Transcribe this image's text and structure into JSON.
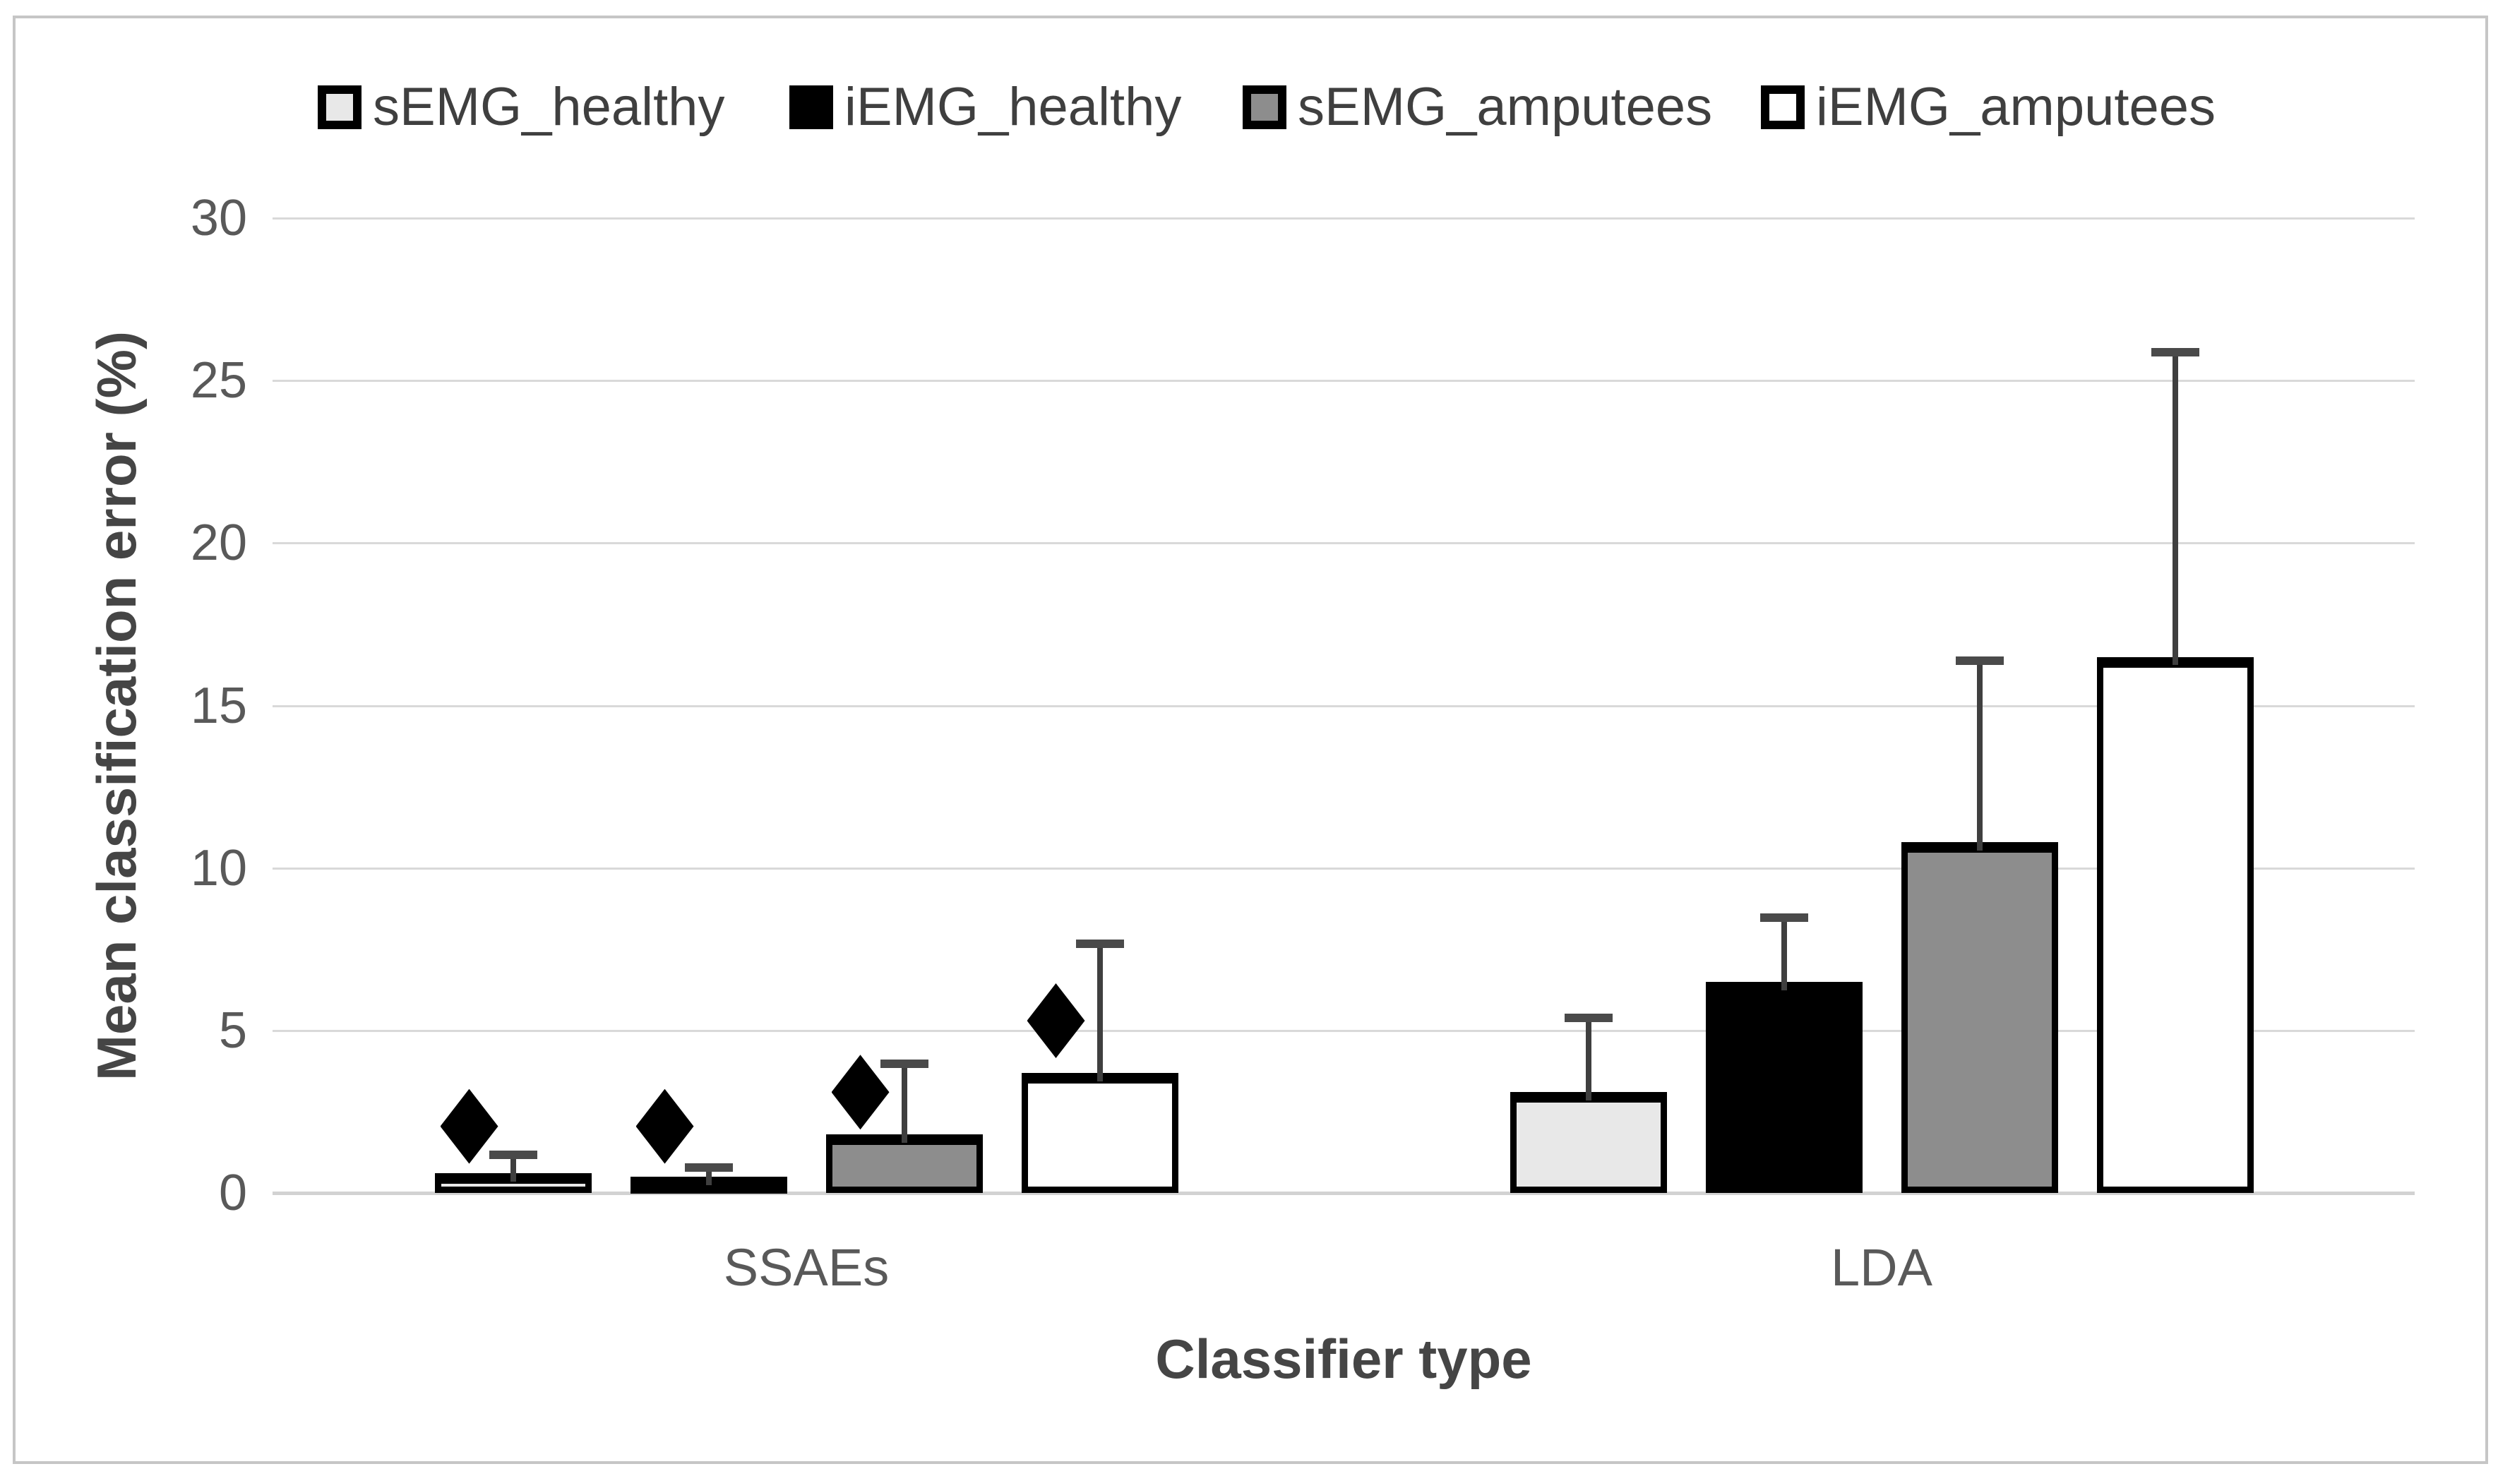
{
  "chart_data": {
    "type": "bar",
    "title": "",
    "xlabel": "Classifier type",
    "ylabel": "Mean classification error (%)",
    "categories": [
      "SSAEs",
      "LDA"
    ],
    "series": [
      {
        "name": "sEMG_healthy",
        "fill": "#e8e8e8",
        "values": [
          0.6,
          3.1
        ],
        "error_up": [
          0.6,
          2.3
        ],
        "sig_marker": [
          2.05,
          null
        ]
      },
      {
        "name": "iEMG_healthy",
        "fill": "#000000",
        "values": [
          0.5,
          6.5
        ],
        "error_up": [
          0.3,
          2.0
        ],
        "sig_marker": [
          2.05,
          null
        ]
      },
      {
        "name": "sEMG_amputees",
        "fill": "#8d8d8d",
        "values": [
          1.8,
          10.8
        ],
        "error_up": [
          2.2,
          5.6
        ],
        "sig_marker": [
          3.1,
          null
        ]
      },
      {
        "name": "iEMG_amputees",
        "fill": "#ffffff",
        "values": [
          3.7,
          16.5
        ],
        "error_up": [
          4.0,
          9.4
        ],
        "sig_marker": [
          5.3,
          null
        ]
      }
    ],
    "yticks": [
      0,
      5,
      10,
      15,
      20,
      25,
      30
    ],
    "ylim": [
      0,
      30
    ],
    "grid": "horizontal",
    "legend_position": "top",
    "annotation_marker": "black-diamond (significance)",
    "colors": {
      "gridline": "#d9d9d9",
      "axis_text": "#595959",
      "error_bar": "#3f3f3f",
      "frame_border": "#c6c6c6"
    }
  }
}
